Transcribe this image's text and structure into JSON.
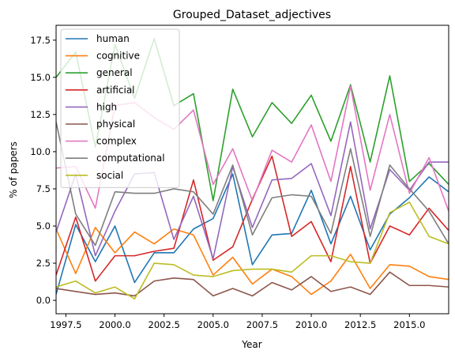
{
  "chart_data": {
    "type": "line",
    "title": "Grouped_Dataset_adjectives",
    "xlabel": "Year",
    "ylabel": "% of papers",
    "xlim": [
      1997,
      2017
    ],
    "ylim": [
      -0.9,
      18.5
    ],
    "xticks": [
      1997.5,
      2000.0,
      2002.5,
      2005.0,
      2007.5,
      2010.0,
      2012.5,
      2015.0
    ],
    "xtick_labels": [
      "1997.5",
      "2000.0",
      "2002.5",
      "2005.0",
      "2007.5",
      "2010.0",
      "2012.5",
      "2015.0"
    ],
    "yticks": [
      0,
      2.5,
      5,
      7.5,
      10,
      12.5,
      15,
      17.5
    ],
    "ytick_labels": [
      "0.0",
      "2.5",
      "5.0",
      "7.5",
      "10.0",
      "12.5",
      "15.0",
      "17.5"
    ],
    "grid": false,
    "legend_position": "top-left",
    "x": [
      1997,
      1998,
      1999,
      2000,
      2001,
      2002,
      2003,
      2004,
      2005,
      2006,
      2007,
      2008,
      2009,
      2010,
      2011,
      2012,
      2013,
      2014,
      2015,
      2016,
      2017
    ],
    "series": [
      {
        "name": "human",
        "color": "#1f77b4",
        "values": [
          0.4,
          5.1,
          2.6,
          5.0,
          1.2,
          3.2,
          3.2,
          4.8,
          5.5,
          8.5,
          2.4,
          4.4,
          4.5,
          7.4,
          3.8,
          7.0,
          3.4,
          5.8,
          6.9,
          8.3,
          7.3
        ]
      },
      {
        "name": "cognitive",
        "color": "#ff7f0e",
        "values": [
          4.8,
          1.8,
          4.9,
          3.2,
          4.6,
          3.8,
          4.8,
          4.4,
          1.7,
          2.9,
          1.1,
          2.1,
          1.6,
          0.4,
          1.3,
          3.1,
          0.8,
          2.4,
          2.3,
          1.6,
          1.4
        ]
      },
      {
        "name": "general",
        "color": "#2ca02c",
        "values": [
          15.0,
          16.7,
          10.3,
          17.2,
          13.6,
          17.6,
          13.1,
          13.9,
          6.7,
          14.2,
          11.0,
          13.3,
          11.9,
          13.8,
          10.7,
          14.5,
          9.3,
          15.1,
          8.0,
          9.2,
          7.8
        ]
      },
      {
        "name": "artificial",
        "color": "#d62728",
        "values": [
          1.7,
          5.6,
          1.3,
          3.0,
          3.0,
          3.3,
          3.5,
          8.1,
          2.7,
          3.6,
          6.8,
          9.7,
          4.3,
          5.3,
          2.6,
          9.0,
          2.5,
          5.0,
          4.4,
          6.2,
          4.7
        ]
      },
      {
        "name": "high",
        "color": "#9467bd",
        "values": [
          4.6,
          8.5,
          3.0,
          6.0,
          8.5,
          8.6,
          4.1,
          7.0,
          2.8,
          9.0,
          4.9,
          8.1,
          8.2,
          9.2,
          5.7,
          12.0,
          4.8,
          8.8,
          7.4,
          9.3,
          9.3
        ]
      },
      {
        "name": "physical",
        "color": "#8c564b",
        "values": [
          0.8,
          0.6,
          0.4,
          0.5,
          0.3,
          1.3,
          1.5,
          1.4,
          0.3,
          0.8,
          0.3,
          1.2,
          0.7,
          1.6,
          0.6,
          0.9,
          0.4,
          1.9,
          1.0,
          1.0,
          0.9
        ]
      },
      {
        "name": "complex",
        "color": "#e377c2",
        "values": [
          8.9,
          9.0,
          6.2,
          13.1,
          13.3,
          12.3,
          11.5,
          12.8,
          7.8,
          10.2,
          6.7,
          10.1,
          9.3,
          11.8,
          8.0,
          14.4,
          7.4,
          12.5,
          7.2,
          9.6,
          6.0
        ]
      },
      {
        "name": "computational",
        "color": "#7f7f7f",
        "values": [
          12.0,
          5.8,
          3.7,
          7.3,
          7.2,
          7.2,
          7.5,
          7.3,
          5.8,
          9.1,
          4.4,
          6.9,
          7.1,
          7.0,
          4.5,
          10.2,
          4.3,
          9.1,
          7.5,
          6.0,
          3.8
        ]
      },
      {
        "name": "social",
        "color": "#bcbd22",
        "values": [
          0.9,
          1.3,
          0.5,
          0.9,
          0.1,
          2.5,
          2.4,
          1.7,
          1.6,
          2.0,
          2.1,
          2.1,
          1.9,
          3.0,
          3.0,
          2.6,
          2.5,
          5.9,
          6.6,
          4.3,
          3.8
        ]
      }
    ]
  }
}
